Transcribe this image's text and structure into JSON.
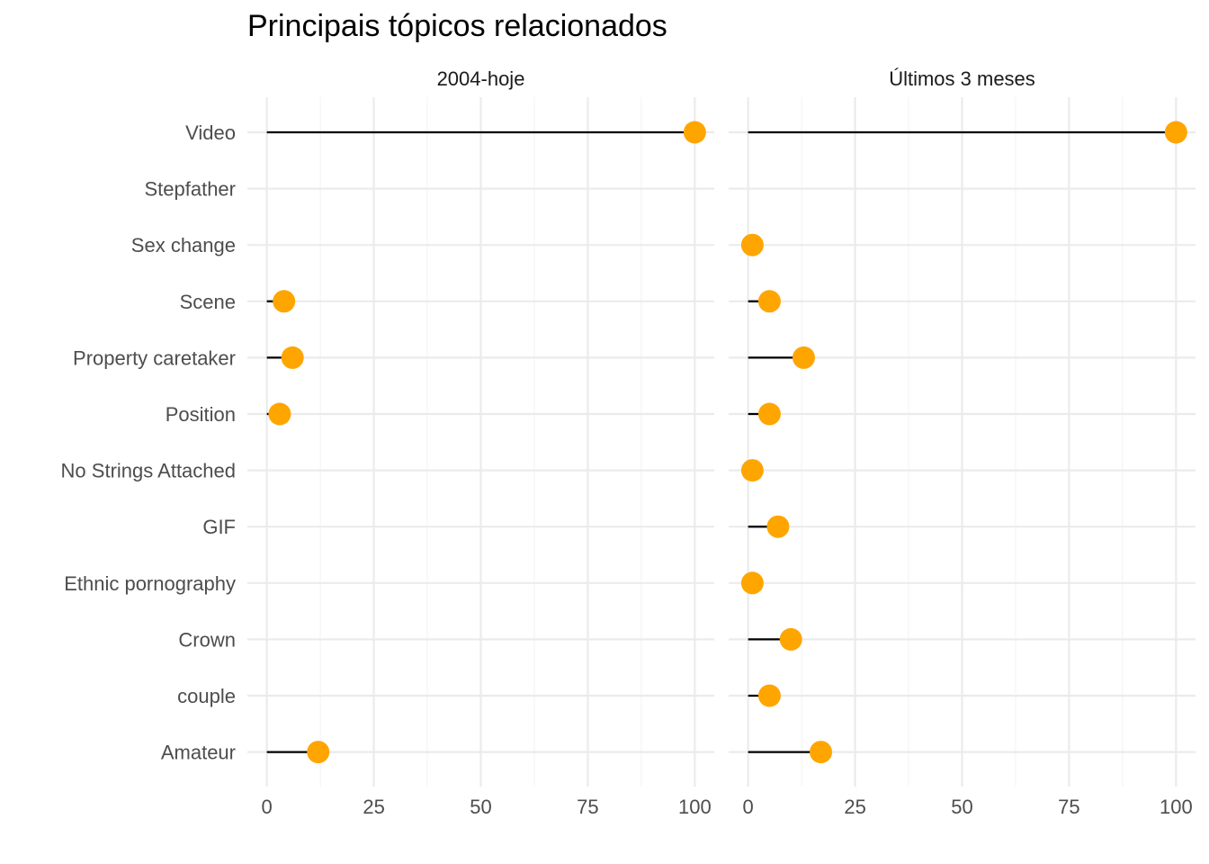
{
  "chart_data": {
    "type": "lollipop",
    "title": "Principais tópicos relacionados",
    "categories": [
      "Video",
      "Stepfather",
      "Sex change",
      "Scene",
      "Property caretaker",
      "Position",
      "No Strings Attached",
      "GIF",
      "Ethnic pornography",
      "Crown",
      "couple",
      "Amateur"
    ],
    "xlim": [
      0,
      100
    ],
    "x_ticks": [
      0,
      25,
      50,
      75,
      100
    ],
    "grid": true,
    "panels": [
      {
        "name": "2004-hoje",
        "values": [
          100,
          null,
          null,
          4,
          6,
          3,
          null,
          null,
          null,
          null,
          null,
          12
        ]
      },
      {
        "name": "Últimos 3 meses",
        "values": [
          100,
          null,
          1,
          5,
          13,
          5,
          1,
          7,
          1,
          10,
          5,
          17
        ]
      }
    ],
    "colors": {
      "point": "#FFA500",
      "segment": "#000000",
      "grid_major": "#EBEBEB",
      "grid_minor": "#F4F4F4"
    }
  }
}
